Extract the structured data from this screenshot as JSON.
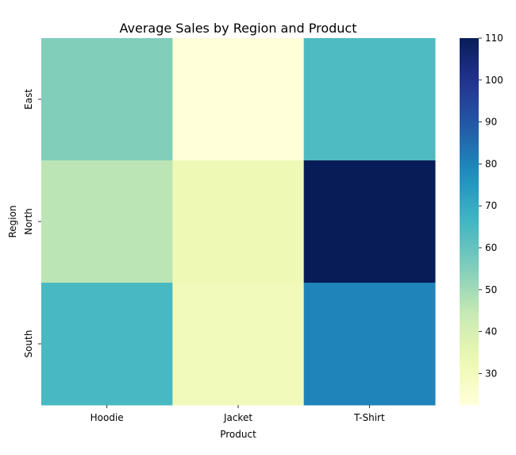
{
  "chart_data": {
    "type": "heatmap",
    "title": "Average Sales by Region and Product",
    "xlabel": "Product",
    "ylabel": "Region",
    "x_categories": [
      "Hoodie",
      "Jacket",
      "T-Shirt"
    ],
    "y_categories": [
      "East",
      "North",
      "South"
    ],
    "values": [
      [
        55,
        22.5,
        64
      ],
      [
        46,
        32,
        110
      ],
      [
        65,
        31,
        80
      ]
    ],
    "colormap": "YlGnBu",
    "colorbar": {
      "vmin": 22.5,
      "vmax": 110,
      "ticks": [
        30,
        40,
        50,
        60,
        70,
        80,
        90,
        100,
        110
      ],
      "tick_labels": [
        "30",
        "40",
        "50",
        "60",
        "70",
        "80",
        "90",
        "100",
        "110"
      ]
    },
    "grid": false,
    "legend": "colorbar-right"
  }
}
